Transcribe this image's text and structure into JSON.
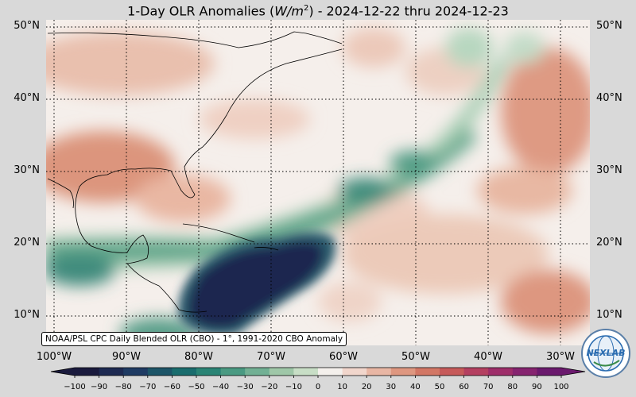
{
  "title_prefix": "1-Day OLR Anomalies (",
  "title_unit_w": "W/m",
  "title_unit_exp": "2",
  "title_suffix": ") - 2024-12-22 thru 2024-12-23",
  "credit": "NOAA/PSL CPC Daily Blended OLR (CBO) - 1°, 1991-2020 CBO Anomaly",
  "logo_text": "NEXLAB",
  "lat_labels": [
    "50°N",
    "40°N",
    "30°N",
    "20°N",
    "10°N"
  ],
  "lon_labels": [
    "100°W",
    "90°W",
    "80°W",
    "70°W",
    "60°W",
    "50°W",
    "40°W",
    "30°W"
  ],
  "colorbar_ticks": [
    "−100",
    "−90",
    "−80",
    "−70",
    "−60",
    "−50",
    "−40",
    "−30",
    "−20",
    "−10",
    "0",
    "10",
    "20",
    "30",
    "40",
    "50",
    "60",
    "70",
    "80",
    "90",
    "100"
  ],
  "colorbar_colors": [
    "#1a1a3d",
    "#1e2a52",
    "#1f3b63",
    "#1d5568",
    "#1a6d6e",
    "#2a8475",
    "#4a9a82",
    "#72b094",
    "#9fc7a8",
    "#c8dec6",
    "#f4f0ec",
    "#f1d6cc",
    "#e8b6a4",
    "#de9780",
    "#d27765",
    "#c65a5a",
    "#b44061",
    "#9e2e6a",
    "#862470",
    "#6b1a6e"
  ],
  "colors": {
    "background": "#d9d9d9",
    "ocean_neutral": "#f5efeb",
    "positive_light": "#eeccbe",
    "positive_mid": "#e2a38d",
    "positive_strong": "#d7836e",
    "negative_light": "#c9dfc9",
    "negative_mid": "#66a88c",
    "negative_strong": "#1f7a74",
    "negative_extreme": "#1c1f46"
  }
}
